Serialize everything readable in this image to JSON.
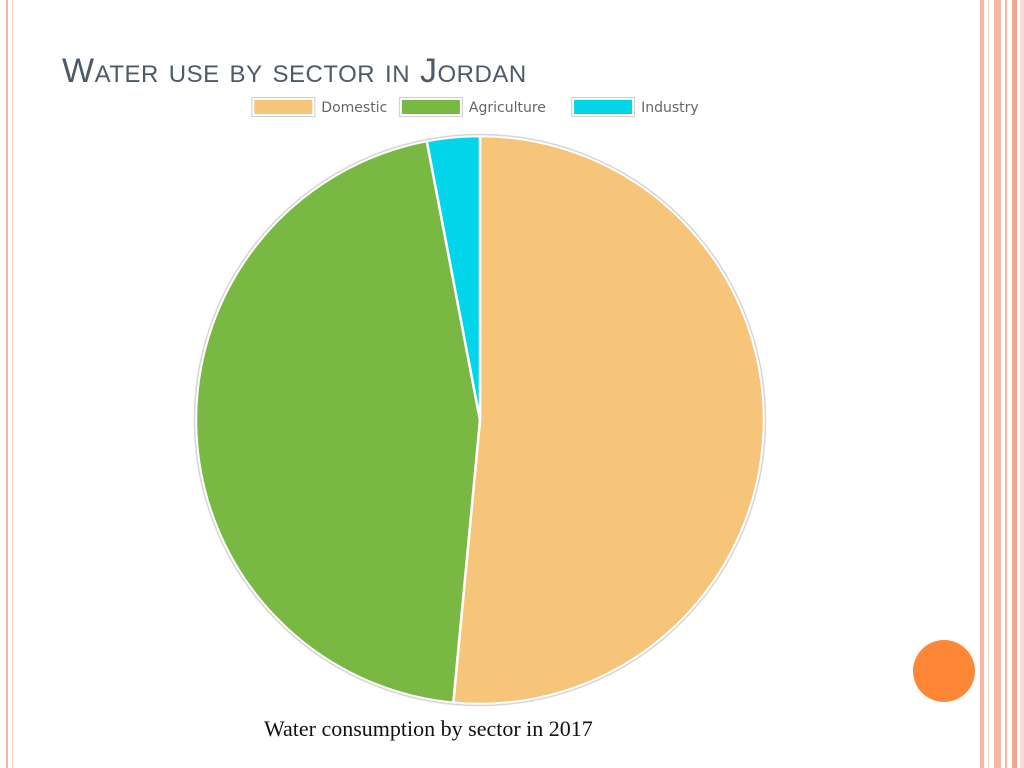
{
  "slide": {
    "title": "Water use by sector in Jordan",
    "caption": "Water consumption by sector in 2017",
    "accent_color": "#fe8637"
  },
  "chart_data": {
    "type": "pie",
    "title": "",
    "legend_position": "top",
    "slices": [
      {
        "label": "Domestic",
        "value": 51.5,
        "color": "#f6c57a"
      },
      {
        "label": "Agriculture",
        "value": 45.5,
        "color": "#78b843"
      },
      {
        "label": "Industry",
        "value": 3.0,
        "color": "#00d5ea"
      }
    ]
  }
}
